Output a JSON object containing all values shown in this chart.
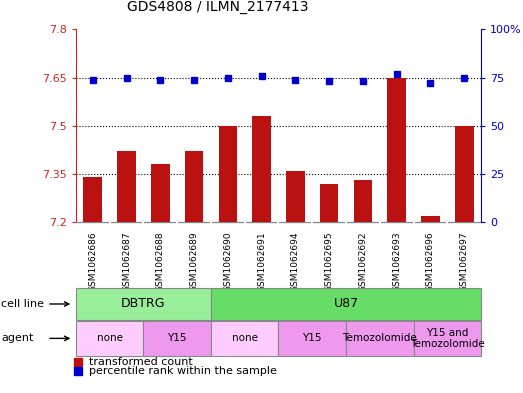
{
  "title": "GDS4808 / ILMN_2177413",
  "samples": [
    "GSM1062686",
    "GSM1062687",
    "GSM1062688",
    "GSM1062689",
    "GSM1062690",
    "GSM1062691",
    "GSM1062694",
    "GSM1062695",
    "GSM1062692",
    "GSM1062693",
    "GSM1062696",
    "GSM1062697"
  ],
  "bar_values": [
    7.34,
    7.42,
    7.38,
    7.42,
    7.5,
    7.53,
    7.36,
    7.32,
    7.33,
    7.65,
    7.22,
    7.5
  ],
  "dot_values": [
    74,
    75,
    74,
    74,
    75,
    76,
    74,
    73,
    73,
    77,
    72,
    75
  ],
  "bar_baseline": 7.2,
  "ylim_left": [
    7.2,
    7.8
  ],
  "ylim_right": [
    0,
    100
  ],
  "yticks_left": [
    7.2,
    7.35,
    7.5,
    7.65,
    7.8
  ],
  "yticks_right": [
    0,
    25,
    50,
    75,
    100
  ],
  "ytick_labels_left": [
    "7.2",
    "7.35",
    "7.5",
    "7.65",
    "7.8"
  ],
  "ytick_labels_right": [
    "0",
    "25",
    "50",
    "75",
    "100%"
  ],
  "hlines": [
    7.35,
    7.5,
    7.65
  ],
  "bar_color": "#BB1111",
  "dot_color": "#0000CC",
  "cell_line_groups": [
    {
      "label": "DBTRG",
      "start": 0,
      "end": 4,
      "color": "#99EE99"
    },
    {
      "label": "U87",
      "start": 4,
      "end": 12,
      "color": "#66DD66"
    }
  ],
  "agent_groups": [
    {
      "label": "none",
      "start": 0,
      "end": 2,
      "color": "#FFCCFF"
    },
    {
      "label": "Y15",
      "start": 2,
      "end": 4,
      "color": "#EE99EE"
    },
    {
      "label": "none",
      "start": 4,
      "end": 6,
      "color": "#FFCCFF"
    },
    {
      "label": "Y15",
      "start": 6,
      "end": 8,
      "color": "#EE99EE"
    },
    {
      "label": "Temozolomide",
      "start": 8,
      "end": 10,
      "color": "#EE99EE"
    },
    {
      "label": "Y15 and\nTemozolomide",
      "start": 10,
      "end": 12,
      "color": "#EE99EE"
    }
  ],
  "legend_bar_label": "transformed count",
  "legend_dot_label": "percentile rank within the sample",
  "cell_line_label": "cell line",
  "agent_label": "agent",
  "background_color": "#FFFFFF",
  "plot_bg_color": "#FFFFFF",
  "tick_color_left": "#CC2222",
  "tick_color_right": "#0000CC",
  "xtick_bg_color": "#DDDDDD",
  "border_color": "#888888"
}
